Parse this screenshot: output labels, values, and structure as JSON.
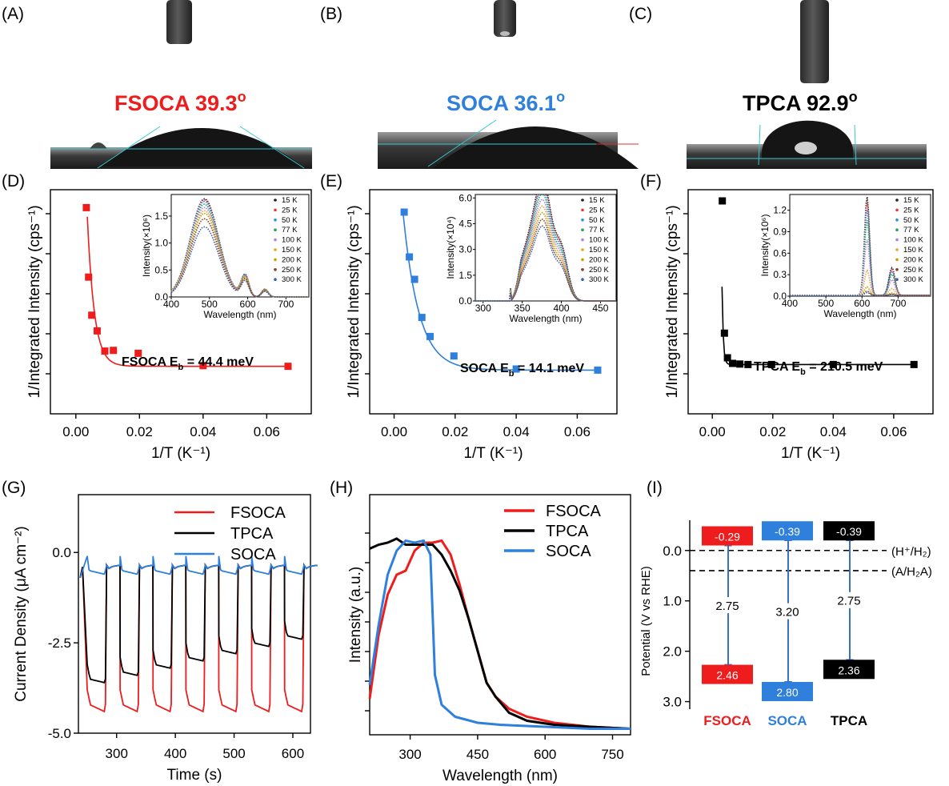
{
  "panel_labels": [
    "(A)",
    "(B)",
    "(C)",
    "(D)",
    "(E)",
    "(F)",
    "(G)",
    "(H)",
    "(I)"
  ],
  "contact_angle": {
    "FSOCA": {
      "text": "FSOCA 39.3",
      "sup": "o",
      "color": "#ee1c1c"
    },
    "SOCA": {
      "text": "SOCA 36.1",
      "sup": "o",
      "color": "#2f7fdc"
    },
    "TPCA": {
      "text": "TPCA 92.9",
      "sup": "o",
      "color": "#000000"
    }
  },
  "colors": {
    "FSOCA": "#ee1c1c",
    "SOCA": "#2f7fdc",
    "TPCA": "#000000",
    "cyan": "#36c7cf"
  },
  "chart_data": [
    {
      "id": "D",
      "type": "scatter",
      "xlabel": "1/T (K⁻¹)",
      "ylabel": "1/Integrated Intensity (cps⁻¹)",
      "xlim": [
        -0.008,
        0.074
      ],
      "x_ticks": [
        "0.00",
        "0.02",
        "0.04",
        "0.06"
      ],
      "x": [
        0.0033,
        0.004,
        0.005,
        0.0067,
        0.0091,
        0.0118,
        0.0196,
        0.04,
        0.0667
      ],
      "y": [
        0.92,
        0.61,
        0.44,
        0.37,
        0.28,
        0.283,
        0.27,
        0.215,
        0.212
      ],
      "annotation": {
        "text": "FSOCA E",
        "sub": "b",
        "rest": " = 44.4 meV"
      },
      "inset": {
        "xlabel": "Wavelength (nm)",
        "ylabel": "Intensity(×10⁶)",
        "x_ticks": [
          "400",
          "500",
          "600",
          "700"
        ],
        "y_ticks": [
          "0.0",
          "0.5",
          "1.0",
          "1.5"
        ],
        "xlim": [
          400,
          760
        ],
        "ylim": [
          0,
          1.9
        ],
        "peak_x": 487,
        "second_peak_x": 593,
        "legend": [
          "15 K",
          "25 K",
          "50 K",
          "77 K",
          "100 K",
          "150 K",
          "200 K",
          "250 K",
          "300 K"
        ],
        "peaks": [
          1.82,
          1.8,
          1.77,
          1.72,
          1.66,
          1.6,
          1.55,
          1.45,
          1.3
        ]
      }
    },
    {
      "id": "E",
      "type": "scatter",
      "xlabel": "1/T (K⁻¹)",
      "ylabel": "1/Integrated Intensity (cps⁻¹)",
      "xlim": [
        -0.008,
        0.073
      ],
      "x_ticks": [
        "0.00",
        "0.02",
        "0.04",
        "0.06"
      ],
      "x": [
        0.0033,
        0.005,
        0.0067,
        0.0091,
        0.0118,
        0.0196,
        0.04,
        0.0667
      ],
      "y": [
        0.9,
        0.7,
        0.6,
        0.43,
        0.345,
        0.258,
        0.2,
        0.195
      ],
      "annotation": {
        "text": "SOCA E",
        "sub": "b",
        "rest": " = 14.1 meV"
      },
      "inset": {
        "xlabel": "Wavelength (nm)",
        "ylabel": "Intensity(×10⁴)",
        "x_ticks": [
          "300",
          "350",
          "400",
          "450"
        ],
        "y_ticks": [
          "0.0",
          "1.5",
          "3.0",
          "4.5",
          "6.0"
        ],
        "xlim": [
          290,
          470
        ],
        "ylim": [
          0,
          6.2
        ],
        "legend": [
          "15 K",
          "25 K",
          "50 K",
          "77 K",
          "100 K",
          "150 K",
          "200 K",
          "250 K",
          "300 K"
        ],
        "peaks": [
          5.6,
          5.4,
          5.2,
          4.9,
          4.6,
          4.3,
          4.0,
          3.7,
          3.4
        ]
      }
    },
    {
      "id": "F",
      "type": "scatter",
      "xlabel": "1/T (K⁻¹)",
      "ylabel": "1/Integrated Intensity (cps⁻¹)",
      "xlim": [
        -0.008,
        0.073
      ],
      "x_ticks": [
        "0.00",
        "0.02",
        "0.04",
        "0.06"
      ],
      "x": [
        0.0033,
        0.004,
        0.005,
        0.0067,
        0.0091,
        0.0118,
        0.0196,
        0.04,
        0.0667
      ],
      "y": [
        0.95,
        0.36,
        0.25,
        0.225,
        0.222,
        0.22,
        0.22,
        0.22,
        0.22
      ],
      "annotation": {
        "text": "TPCA E",
        "sub": "b",
        "rest": " = 210.5 meV"
      },
      "inset": {
        "xlabel": "Wavelength (nm)",
        "ylabel": "Intensity(×10⁶)",
        "x_ticks": [
          "400",
          "500",
          "600",
          "700"
        ],
        "y_ticks": [
          "0.0",
          "0.3",
          "0.6",
          "0.9",
          "1.2"
        ],
        "xlim": [
          400,
          790
        ],
        "ylim": [
          0,
          1.42
        ],
        "legend": [
          "15 K",
          "25 K",
          "50 K",
          "77 K",
          "100 K",
          "150 K",
          "200 K",
          "250 K",
          "300 K"
        ],
        "peaks": [
          1.38,
          1.3,
          1.2,
          1.05,
          0.78,
          0.35,
          0.12,
          0.06,
          0.04
        ]
      }
    },
    {
      "id": "G",
      "type": "line",
      "xlabel": "Time (s)",
      "ylabel": "Current Density (μA cm⁻²)",
      "xlim": [
        235,
        630
      ],
      "ylim": [
        -5.0,
        1.6
      ],
      "x_ticks": [
        "300",
        "400",
        "500",
        "600"
      ],
      "y_ticks": [
        "-5.0",
        "-2.5",
        "0.0"
      ],
      "series": [
        {
          "name": "FSOCA",
          "on_value": -4.2,
          "on_start": 250,
          "period": 56,
          "cycles": 7
        },
        {
          "name": "TPCA",
          "on_value": -2.2,
          "on_start": 250,
          "period": 56,
          "cycles": 7
        },
        {
          "name": "SOCA",
          "on_value": -0.5,
          "on_start": 250,
          "period": 56,
          "cycles": 7
        }
      ]
    },
    {
      "id": "H",
      "type": "line",
      "xlabel": "Wavelength (nm)",
      "ylabel": "Intensity (a.u.)",
      "xlim": [
        210,
        790
      ],
      "x_ticks": [
        "300",
        "450",
        "600",
        "750"
      ],
      "series": [
        {
          "name": "FSOCA",
          "points": [
            [
              210,
              0.18
            ],
            [
              230,
              0.5
            ],
            [
              250,
              0.7
            ],
            [
              270,
              0.8
            ],
            [
              290,
              0.82
            ],
            [
              310,
              0.92
            ],
            [
              330,
              0.96
            ],
            [
              350,
              0.96
            ],
            [
              370,
              0.97
            ],
            [
              390,
              0.9
            ],
            [
              410,
              0.75
            ],
            [
              430,
              0.58
            ],
            [
              450,
              0.42
            ],
            [
              470,
              0.26
            ],
            [
              490,
              0.19
            ],
            [
              520,
              0.13
            ],
            [
              560,
              0.09
            ],
            [
              620,
              0.06
            ],
            [
              700,
              0.04
            ],
            [
              790,
              0.03
            ]
          ]
        },
        {
          "name": "TPCA",
          "points": [
            [
              210,
              0.93
            ],
            [
              230,
              0.95
            ],
            [
              250,
              0.96
            ],
            [
              270,
              0.98
            ],
            [
              290,
              0.95
            ],
            [
              310,
              0.95
            ],
            [
              330,
              0.95
            ],
            [
              350,
              0.95
            ],
            [
              370,
              0.9
            ],
            [
              390,
              0.82
            ],
            [
              410,
              0.72
            ],
            [
              430,
              0.58
            ],
            [
              450,
              0.42
            ],
            [
              470,
              0.26
            ],
            [
              490,
              0.19
            ],
            [
              520,
              0.11
            ],
            [
              560,
              0.07
            ],
            [
              620,
              0.05
            ],
            [
              700,
              0.04
            ],
            [
              790,
              0.03
            ]
          ]
        },
        {
          "name": "SOCA",
          "points": [
            [
              210,
              0.25
            ],
            [
              230,
              0.55
            ],
            [
              250,
              0.8
            ],
            [
              270,
              0.92
            ],
            [
              290,
              0.97
            ],
            [
              310,
              0.96
            ],
            [
              330,
              0.97
            ],
            [
              345,
              0.9
            ],
            [
              355,
              0.3
            ],
            [
              370,
              0.15
            ],
            [
              400,
              0.09
            ],
            [
              450,
              0.06
            ],
            [
              500,
              0.05
            ],
            [
              600,
              0.04
            ],
            [
              700,
              0.03
            ],
            [
              790,
              0.03
            ]
          ]
        }
      ]
    },
    {
      "id": "I",
      "type": "diagram",
      "ylabel": "Potential (V vs RHE)",
      "ylim": [
        -0.6,
        3.15
      ],
      "y_ticks": [
        "0.0",
        "1.0",
        "2.0",
        "3.0"
      ],
      "ref_lines": [
        {
          "value": 0.0,
          "label": "(H⁺/H₂)"
        },
        {
          "value": 0.4,
          "label": "(A/H₂A)"
        }
      ],
      "bands": [
        {
          "name": "FSOCA",
          "cb": -0.29,
          "vb": 2.46,
          "gap": "2.75",
          "cb_label": "-0.29",
          "vb_label": "2.46"
        },
        {
          "name": "SOCA",
          "cb": -0.39,
          "vb": 2.8,
          "gap": "3.20",
          "cb_label": "-0.39",
          "vb_label": "2.80"
        },
        {
          "name": "TPCA",
          "cb": -0.39,
          "vb": 2.36,
          "gap": "2.75",
          "cb_label": "-0.39",
          "vb_label": "2.36"
        }
      ]
    }
  ]
}
